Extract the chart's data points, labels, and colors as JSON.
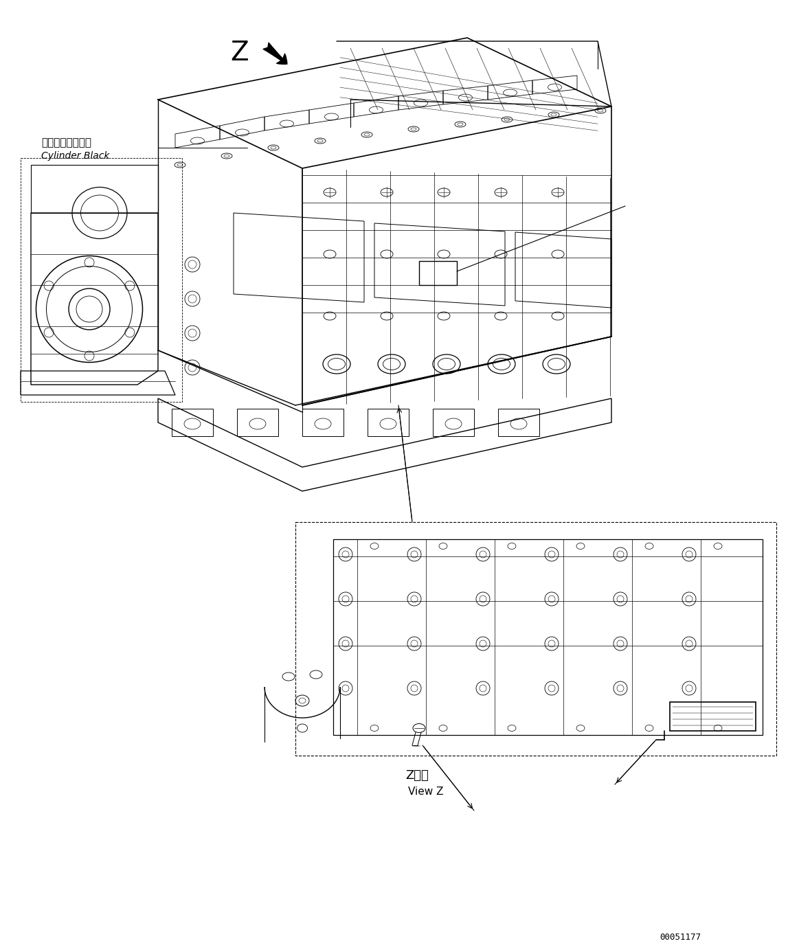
{
  "background_color": "#ffffff",
  "line_color": "#000000",
  "label_cylinder_block_ja": "シリンダブロック",
  "label_cylinder_block_en": "Cylinder Black",
  "label_z": "Z",
  "label_view_z_ja": "Z　視",
  "label_view_z_en": "View Z",
  "part_number": "00051177",
  "fig_width": 11.63,
  "fig_height": 13.83,
  "dpi": 100
}
